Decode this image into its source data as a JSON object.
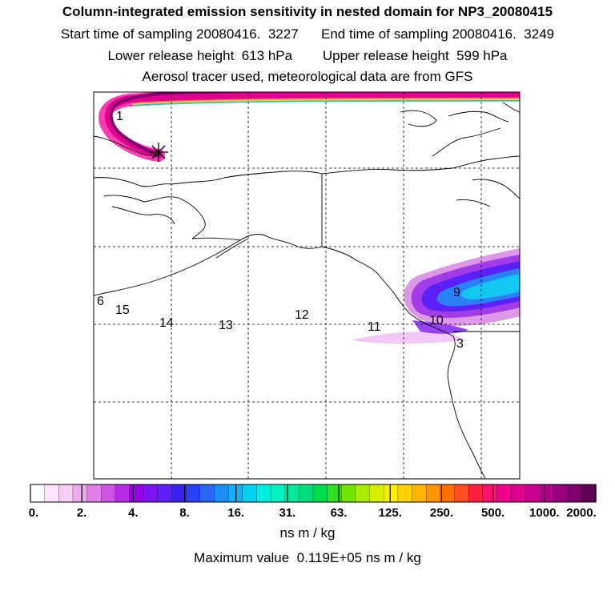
{
  "header": {
    "title": "Column-integrated emission sensitivity in nested domain for NP3_20080415",
    "start_label": "Start time of sampling",
    "start_value": "20080416.  3227",
    "end_label": "End time of sampling",
    "end_value": "20080416.  3249",
    "lower_label": "Lower release height",
    "lower_value": "613 hPa",
    "upper_label": "Upper release height",
    "upper_value": "599 hPa",
    "source_line": "Aerosol tracer used, meteorological data are from GFS"
  },
  "map": {
    "point_labels": [
      "6",
      "15",
      "14",
      "13",
      "12",
      "11",
      "10",
      "9",
      "3",
      "1"
    ],
    "colors": {
      "frame": "#000000",
      "coast": "#000000",
      "grid": "#000000",
      "background": "#ffffff"
    },
    "release_marker": "star-icon"
  },
  "colorbar": {
    "tick_labels": [
      "0.",
      "2.",
      "4.",
      "8.",
      "16.",
      "31.",
      "63.",
      "125.",
      "250.",
      "500.",
      "1000.",
      "2000."
    ],
    "colors": [
      "#ffffff",
      "#fde6fd",
      "#f7cdf7",
      "#eeaaf0",
      "#e07fe8",
      "#cf55e6",
      "#b82be6",
      "#9a00e6",
      "#7a14f0",
      "#5a20f5",
      "#3a24f5",
      "#2a40f5",
      "#2a66f5",
      "#1e8cf5",
      "#12b0f5",
      "#00d2f0",
      "#00eee0",
      "#00f5c0",
      "#00e89a",
      "#00dc78",
      "#00dc50",
      "#30e020",
      "#70e600",
      "#a8ec00",
      "#d8f000",
      "#f8f000",
      "#ffd200",
      "#ffb400",
      "#ff9600",
      "#ff7000",
      "#ff4c20",
      "#ff2040",
      "#ff1070",
      "#f0008c",
      "#e0008e",
      "#c8008e",
      "#b0008a",
      "#9a007e",
      "#80006e",
      "#600050"
    ],
    "units": "ns m / kg"
  },
  "footer": {
    "max_label": "Maximum value",
    "max_value": "0.119E+05 ns m / kg"
  }
}
